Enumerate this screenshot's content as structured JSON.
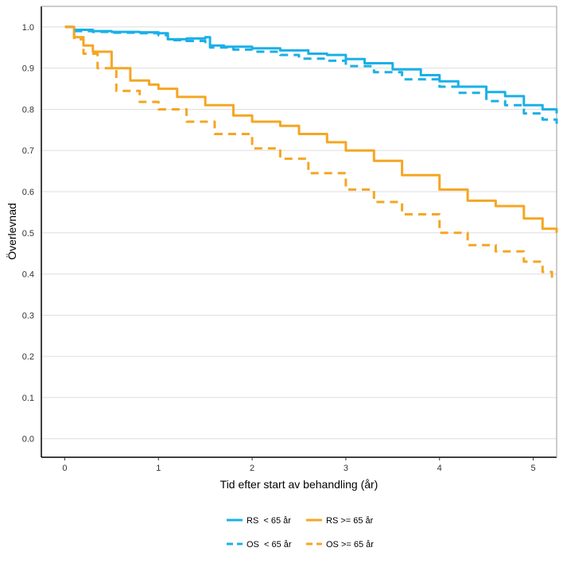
{
  "chart_data": {
    "type": "line",
    "title": "",
    "xlabel": "Tid efter start av behandling (år)",
    "ylabel": "Överlevnad",
    "xlim": [
      -0.25,
      5.25
    ],
    "ylim": [
      -0.045,
      1.05
    ],
    "x_ticks": [
      0,
      1,
      2,
      3,
      4,
      5
    ],
    "x_tick_labels": [
      "0",
      "1",
      "2",
      "3",
      "4",
      "5"
    ],
    "y_ticks": [
      0.0,
      0.1,
      0.2,
      0.3,
      0.4,
      0.5,
      0.6,
      0.7,
      0.8,
      0.9,
      1.0
    ],
    "y_tick_labels": [
      "0.0",
      "0.1",
      "0.2",
      "0.3",
      "0.4",
      "0.5",
      "0.6",
      "0.7",
      "0.8",
      "0.9",
      "1.0"
    ],
    "grid": "horizontal",
    "legend_position": "bottom",
    "legend_rows": [
      [
        {
          "label": "RS  < 65 år",
          "series": 0
        },
        {
          "label": "RS >= 65 år",
          "series": 1
        }
      ],
      [
        {
          "label": "OS  < 65 år",
          "series": 2
        },
        {
          "label": "OS >= 65 år",
          "series": 3
        }
      ]
    ],
    "series": [
      {
        "color": "#1ab0e8",
        "dash": "solid",
        "x": [
          0,
          0.1,
          0.3,
          0.5,
          0.8,
          1.0,
          1.1,
          1.3,
          1.5,
          1.55,
          1.7,
          2.0,
          2.3,
          2.6,
          2.8,
          3.0,
          3.2,
          3.5,
          3.8,
          4.0,
          4.2,
          4.5,
          4.7,
          4.9,
          5.1,
          5.25
        ],
        "y": [
          1.0,
          0.993,
          0.99,
          0.988,
          0.987,
          0.985,
          0.97,
          0.972,
          0.975,
          0.955,
          0.952,
          0.948,
          0.943,
          0.935,
          0.932,
          0.922,
          0.912,
          0.897,
          0.883,
          0.868,
          0.855,
          0.842,
          0.832,
          0.81,
          0.8,
          0.79
        ]
      },
      {
        "color": "#f5a623",
        "dash": "solid",
        "x": [
          0,
          0.1,
          0.2,
          0.3,
          0.5,
          0.7,
          0.9,
          1.0,
          1.2,
          1.5,
          1.8,
          2.0,
          2.3,
          2.5,
          2.8,
          3.0,
          3.3,
          3.6,
          4.0,
          4.3,
          4.6,
          4.9,
          5.1,
          5.25
        ],
        "y": [
          1.0,
          0.975,
          0.955,
          0.94,
          0.9,
          0.87,
          0.86,
          0.85,
          0.83,
          0.81,
          0.785,
          0.77,
          0.76,
          0.74,
          0.72,
          0.7,
          0.675,
          0.64,
          0.605,
          0.578,
          0.565,
          0.535,
          0.51,
          0.5
        ]
      },
      {
        "color": "#1ab0e8",
        "dash": "dashed",
        "x": [
          0,
          0.1,
          0.3,
          0.5,
          0.8,
          1.0,
          1.1,
          1.3,
          1.5,
          1.55,
          1.8,
          2.0,
          2.3,
          2.5,
          2.8,
          3.0,
          3.3,
          3.6,
          4.0,
          4.2,
          4.5,
          4.7,
          4.9,
          5.1,
          5.25
        ],
        "y": [
          1.0,
          0.99,
          0.988,
          0.986,
          0.985,
          0.98,
          0.968,
          0.966,
          0.963,
          0.95,
          0.945,
          0.94,
          0.932,
          0.923,
          0.918,
          0.905,
          0.89,
          0.873,
          0.855,
          0.84,
          0.82,
          0.81,
          0.79,
          0.775,
          0.765
        ]
      },
      {
        "color": "#f5a623",
        "dash": "dashed",
        "x": [
          0,
          0.1,
          0.2,
          0.35,
          0.55,
          0.8,
          1.0,
          1.3,
          1.6,
          2.0,
          2.3,
          2.6,
          3.0,
          3.3,
          3.6,
          4.0,
          4.3,
          4.6,
          4.9,
          5.1,
          5.2
        ],
        "y": [
          1.0,
          0.97,
          0.935,
          0.9,
          0.845,
          0.818,
          0.8,
          0.77,
          0.74,
          0.705,
          0.68,
          0.645,
          0.605,
          0.575,
          0.545,
          0.5,
          0.47,
          0.455,
          0.43,
          0.405,
          0.385
        ]
      }
    ]
  }
}
